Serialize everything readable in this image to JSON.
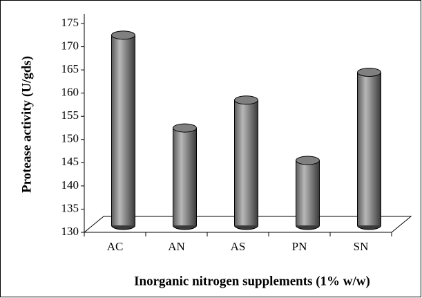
{
  "chart_data": {
    "type": "bar",
    "x_label": "Inorganic nitrogen supplements (1% w/w)",
    "y_label": "Protease activity (U/gds)",
    "categories": [
      "AC",
      "AN",
      "AS",
      "PN",
      "SN"
    ],
    "values": [
      171,
      151,
      157,
      144,
      163
    ],
    "color": "#808080",
    "ylim": [
      130,
      175
    ],
    "yticks": [
      130,
      135,
      140,
      145,
      150,
      155,
      160,
      165,
      170,
      175
    ]
  }
}
